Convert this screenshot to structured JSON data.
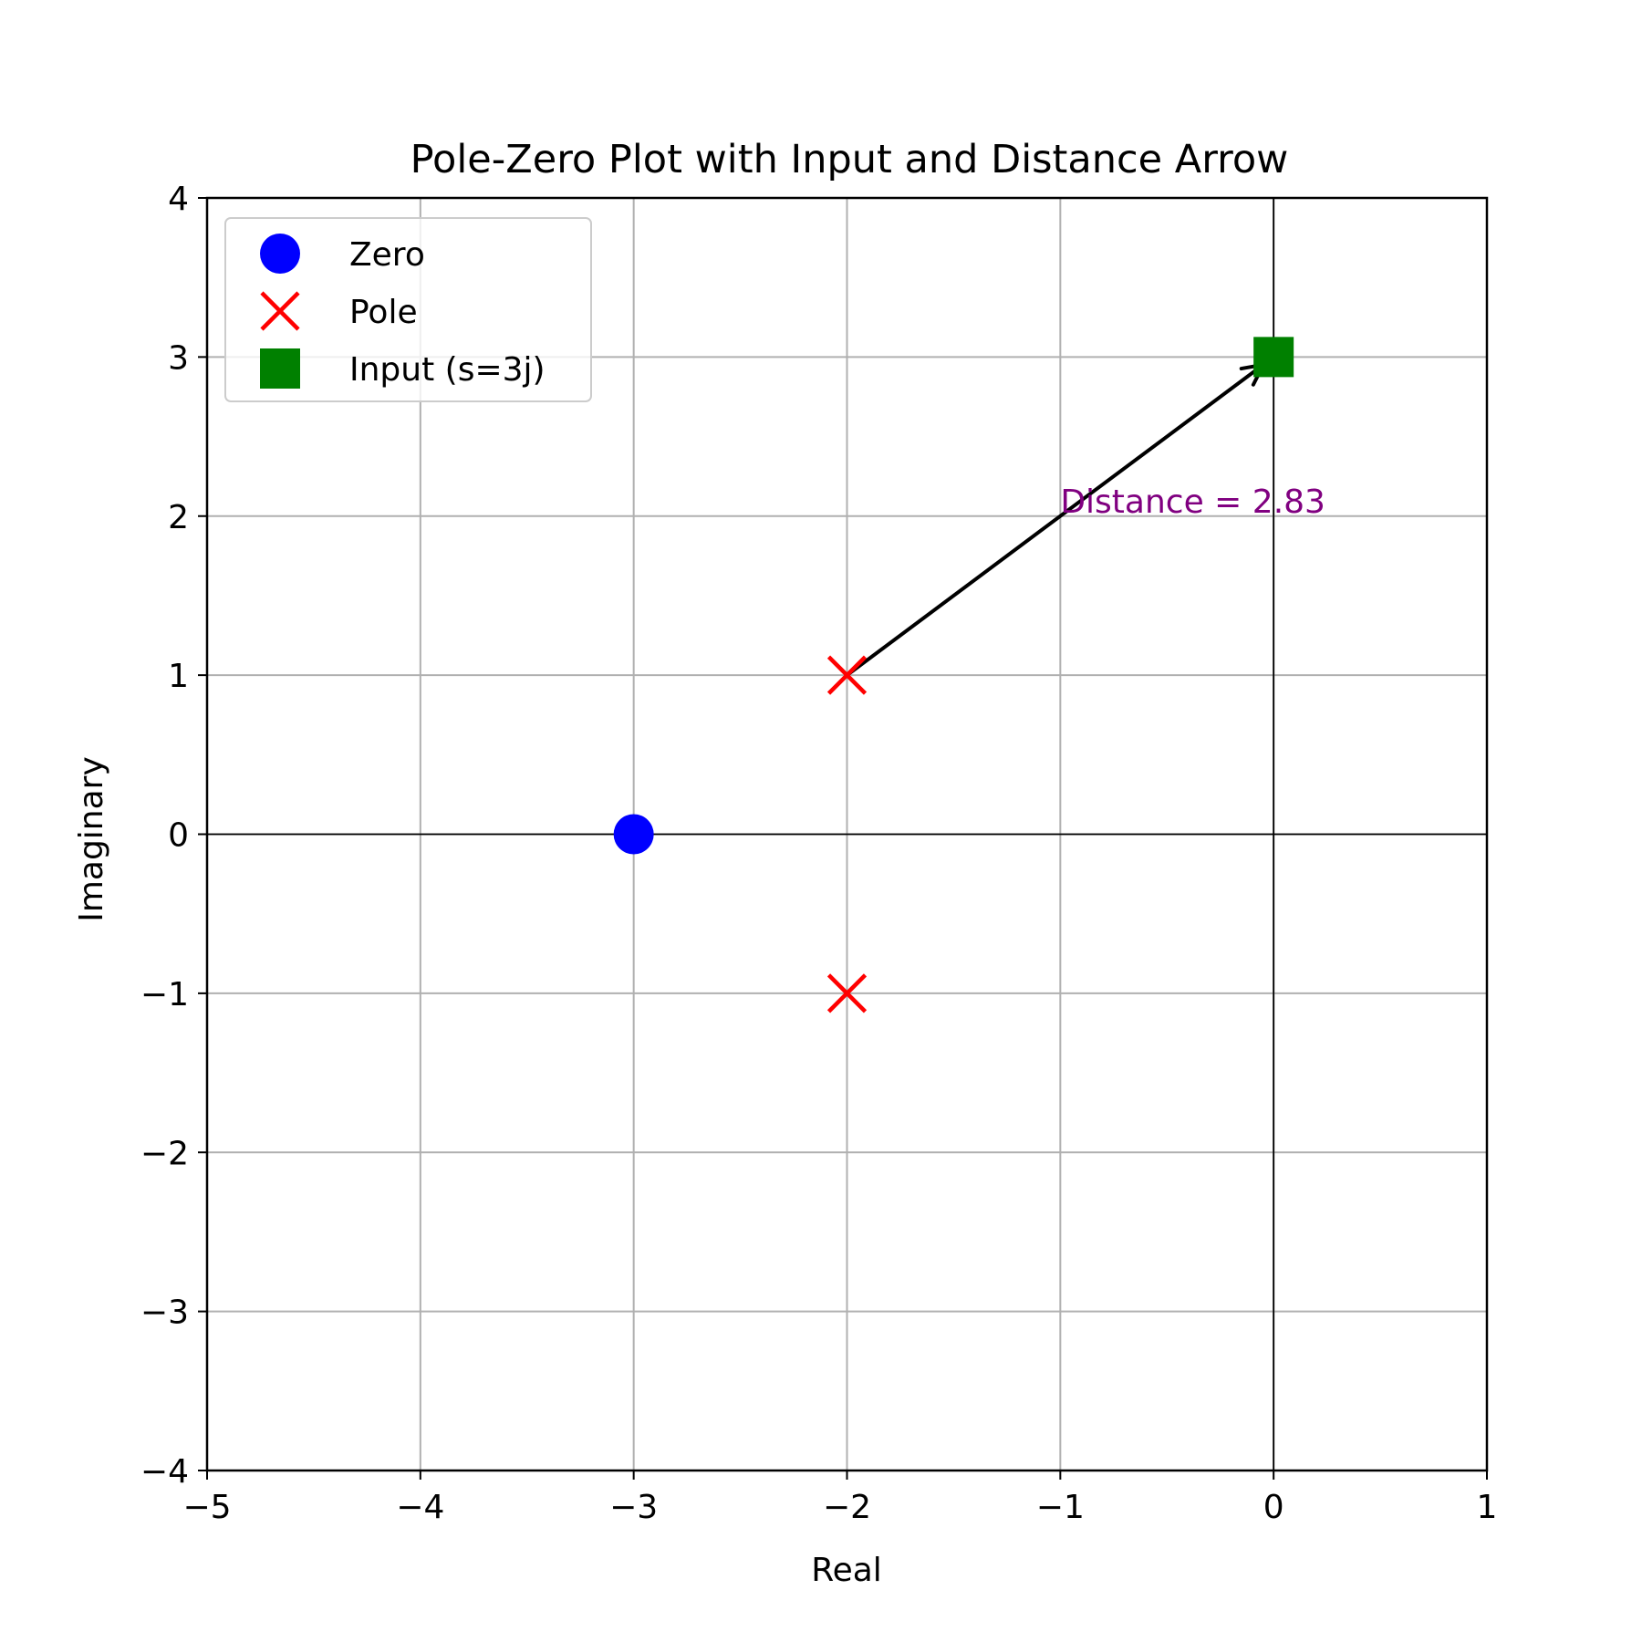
{
  "chart_data": {
    "type": "scatter",
    "title": "Pole-Zero Plot with Input and Distance Arrow",
    "xlabel": "Real",
    "ylabel": "Imaginary",
    "xlim": [
      -5,
      1
    ],
    "ylim": [
      -4,
      4
    ],
    "xticks": [
      -5,
      -4,
      -3,
      -2,
      -1,
      0,
      1
    ],
    "yticks": [
      -4,
      -3,
      -2,
      -1,
      0,
      1,
      2,
      3,
      4
    ],
    "xtick_labels": [
      "−5",
      "−4",
      "−3",
      "−2",
      "−1",
      "0",
      "1"
    ],
    "ytick_labels": [
      "−4",
      "−3",
      "−2",
      "−1",
      "0",
      "1",
      "2",
      "3",
      "4"
    ],
    "grid": true,
    "reference_lines": {
      "horizontal_y": 0,
      "vertical_x": 0,
      "color": "#000000"
    },
    "legend_position": "upper-left",
    "series": [
      {
        "name": "Zero",
        "marker": "circle",
        "color": "#0000ff",
        "points": [
          [
            -3,
            0
          ]
        ]
      },
      {
        "name": "Pole",
        "marker": "x",
        "color": "#ff0000",
        "points": [
          [
            -2,
            1
          ],
          [
            -2,
            -1
          ]
        ]
      },
      {
        "name": "Input (s=3j)",
        "marker": "square",
        "color": "#008000",
        "points": [
          [
            0,
            3
          ]
        ]
      }
    ],
    "arrow": {
      "from": [
        -2,
        1
      ],
      "to": [
        0,
        3
      ],
      "color": "#000000"
    },
    "annotation": {
      "text": "Distance = 2.83",
      "x": -1,
      "y": 2,
      "color": "#800080"
    }
  }
}
